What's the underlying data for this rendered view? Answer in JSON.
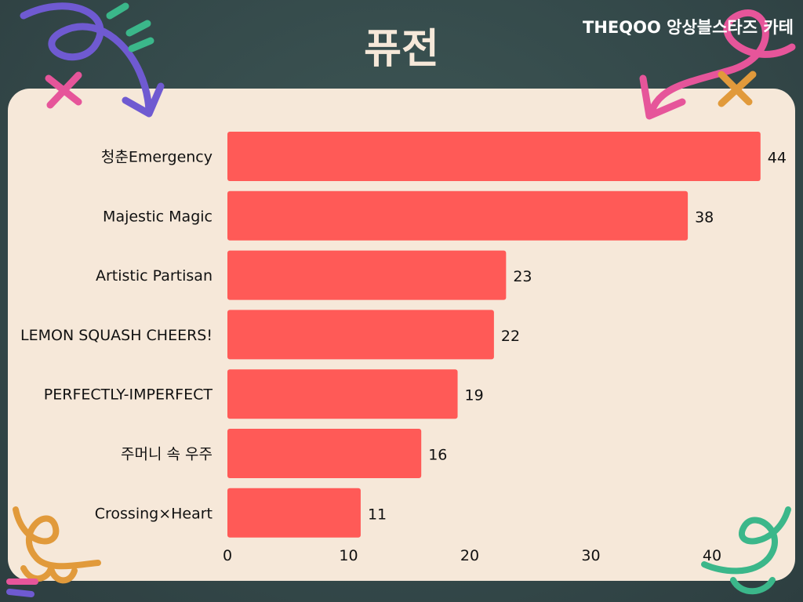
{
  "header": {
    "title": "퓨전",
    "watermark": "THEQOO 앙상블스타즈 카테"
  },
  "colors": {
    "background": "#34494a",
    "panel": "#f6e8d9",
    "bar": "#ff5a57",
    "text": "#111111",
    "title": "#f6e8d9"
  },
  "chart_data": {
    "type": "bar",
    "orientation": "horizontal",
    "title": "퓨전",
    "categories": [
      "청춘Emergency",
      "Majestic Magic",
      "Artistic Partisan",
      "LEMON SQUASH CHEERS!",
      "PERFECTLY-IMPERFECT",
      "주머니 속 우주",
      "Crossing×Heart"
    ],
    "values": [
      44,
      38,
      23,
      22,
      19,
      16,
      11
    ],
    "xticks": [
      0,
      10,
      20,
      30,
      40
    ],
    "xlim": [
      0,
      44
    ],
    "xlabel": "",
    "ylabel": "",
    "grid": false,
    "legend": "none"
  }
}
